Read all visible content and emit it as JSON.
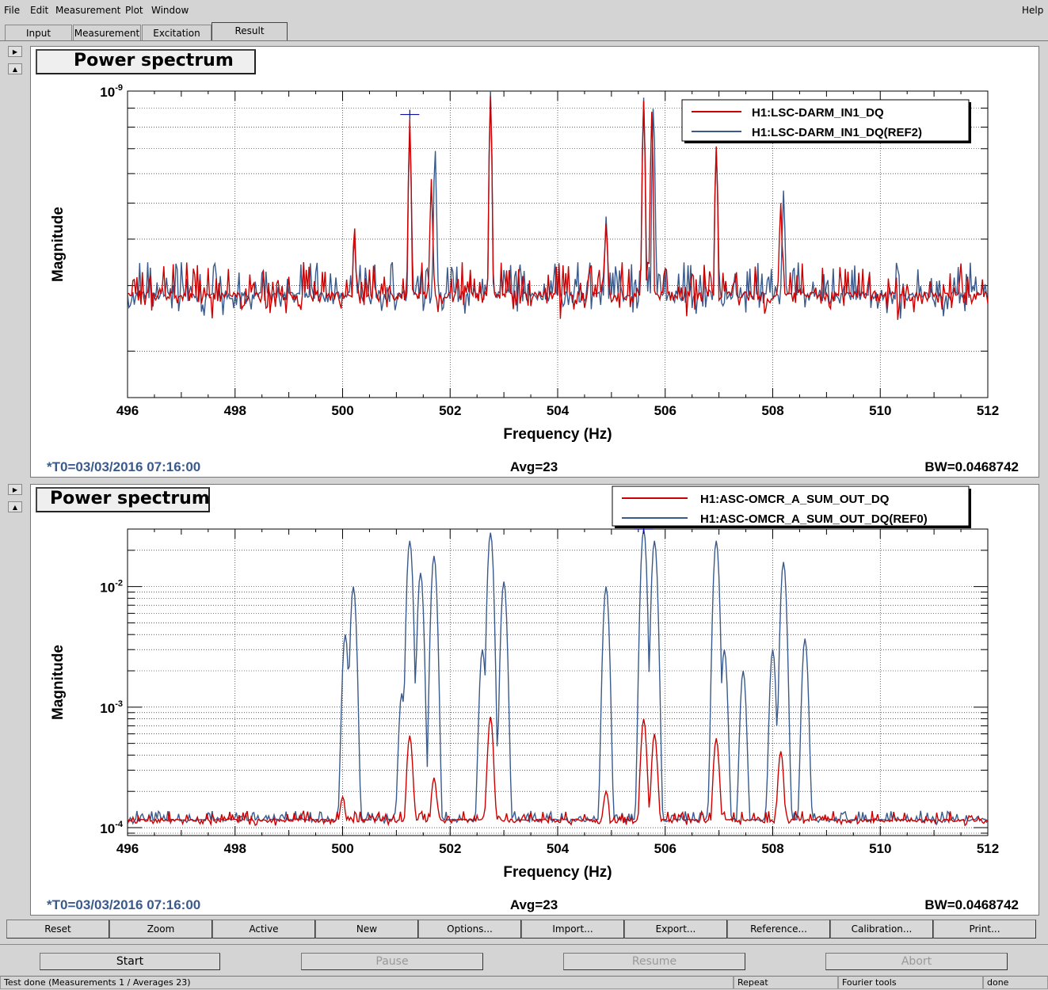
{
  "menu": {
    "items": [
      "File",
      "Edit",
      "Measurement",
      "Plot",
      "Window"
    ],
    "help": "Help"
  },
  "tabs": [
    "Input",
    "Measurement",
    "Excitation",
    "Result"
  ],
  "active_tab": "Result",
  "colors": {
    "red": "#cc0000",
    "blue": "#3a5a8c",
    "info": "#3a5a8c"
  },
  "plots": [
    {
      "title": "Power spectrum",
      "legend": [
        "H1:LSC-DARM_IN1_DQ",
        "H1:LSC-DARM_IN1_DQ(REF2)"
      ],
      "t0": "*T0=03/03/2016 07:16:00",
      "avg": "Avg=23",
      "bw": "BW=0.0468742"
    },
    {
      "title": "Power spectrum",
      "legend": [
        "H1:ASC-OMCR_A_SUM_OUT_DQ",
        "H1:ASC-OMCR_A_SUM_OUT_DQ(REF0)"
      ],
      "t0": "*T0=03/03/2016 07:16:00",
      "avg": "Avg=23",
      "bw": "BW=0.0468742"
    }
  ],
  "buttons": [
    "Reset",
    "Zoom",
    "Active",
    "New",
    "Options...",
    "Import...",
    "Export...",
    "Reference...",
    "Calibration...",
    "Print..."
  ],
  "controls": {
    "start": "Start",
    "pause": "Pause",
    "resume": "Resume",
    "abort": "Abort"
  },
  "status": {
    "main": "Test done (Measurements 1 / Averages 23)",
    "repeat": "Repeat",
    "tools": "Fourier tools",
    "state": "done"
  },
  "chart_data": [
    {
      "type": "line",
      "title": "Power spectrum",
      "xlabel": "Frequency (Hz)",
      "ylabel": "Magnitude",
      "xlim": [
        496,
        512
      ],
      "xticks": [
        496,
        498,
        500,
        502,
        504,
        506,
        508,
        510,
        512
      ],
      "xtick_labels": [
        "496",
        "498",
        "500",
        "502",
        "504",
        "506",
        "508",
        "510",
        "512"
      ],
      "ylog": true,
      "ylim": [
        1.5e-10,
        1e-09
      ],
      "yticks": [
        1e-09
      ],
      "ytick_labels": [
        "10-9"
      ],
      "grid": true,
      "legend_position": "top-right",
      "baseline": 2.4e-10,
      "series": [
        {
          "name": "H1:LSC-DARM_IN1_DQ",
          "color": "#cc0000",
          "peaks": [
            [
              500.22,
              4.3e-10
            ],
            [
              501.25,
              8.4e-10
            ],
            [
              501.65,
              5.8e-10
            ],
            [
              502.75,
              9.7e-10
            ],
            [
              504.9,
              4.4e-10
            ],
            [
              505.6,
              9.4e-10
            ],
            [
              505.75,
              8.8e-10
            ],
            [
              506.95,
              7.1e-10
            ],
            [
              508.15,
              5e-10
            ]
          ]
        },
        {
          "name": "H1:LSC-DARM_IN1_DQ(REF2)",
          "color": "#3a5a8c",
          "peaks": [
            [
              500.22,
              4e-10
            ],
            [
              501.25,
              8e-10
            ],
            [
              501.72,
              7e-10
            ],
            [
              502.75,
              1e-09
            ],
            [
              504.9,
              4.6e-10
            ],
            [
              505.6,
              9.6e-10
            ],
            [
              505.78,
              9.1e-10
            ],
            [
              506.95,
              7e-10
            ],
            [
              508.2,
              5.4e-10
            ]
          ]
        }
      ]
    },
    {
      "type": "line",
      "title": "Power spectrum",
      "xlabel": "Frequency (Hz)",
      "ylabel": "Magnitude",
      "xlim": [
        496,
        512
      ],
      "xticks": [
        496,
        498,
        500,
        502,
        504,
        506,
        508,
        510,
        512
      ],
      "xtick_labels": [
        "496",
        "498",
        "500",
        "502",
        "504",
        "506",
        "508",
        "510",
        "512"
      ],
      "ylog": true,
      "ylim": [
        8.6e-05,
        0.03
      ],
      "yticks": [
        0.0001,
        0.001,
        0.01
      ],
      "ytick_labels": [
        "10-4",
        "10-3",
        "10-2"
      ],
      "grid": true,
      "legend_position": "top-right",
      "baseline": 0.0001,
      "series": [
        {
          "name": "H1:ASC-OMCR_A_SUM_OUT_DQ",
          "color": "#cc0000",
          "peaks": [
            [
              500.0,
              0.00018
            ],
            [
              501.25,
              0.00058
            ],
            [
              501.7,
              0.00026
            ],
            [
              502.75,
              0.00083
            ],
            [
              504.9,
              0.0002
            ],
            [
              505.6,
              0.0008
            ],
            [
              505.8,
              0.0006
            ],
            [
              506.95,
              0.00055
            ],
            [
              508.15,
              0.00043
            ]
          ]
        },
        {
          "name": "H1:ASC-OMCR_A_SUM_OUT_DQ(REF0)",
          "color": "#3a5a8c",
          "peaks": [
            [
              500.05,
              0.004
            ],
            [
              500.2,
              0.01
            ],
            [
              501.1,
              0.0013
            ],
            [
              501.25,
              0.024
            ],
            [
              501.45,
              0.013
            ],
            [
              501.7,
              0.018
            ],
            [
              502.6,
              0.003
            ],
            [
              502.75,
              0.028
            ],
            [
              503.0,
              0.011
            ],
            [
              504.9,
              0.01
            ],
            [
              505.6,
              0.03
            ],
            [
              505.8,
              0.024
            ],
            [
              506.95,
              0.024
            ],
            [
              507.1,
              0.003
            ],
            [
              507.45,
              0.002
            ],
            [
              508.0,
              0.003
            ],
            [
              508.2,
              0.016
            ],
            [
              508.6,
              0.0037
            ]
          ]
        }
      ]
    }
  ]
}
